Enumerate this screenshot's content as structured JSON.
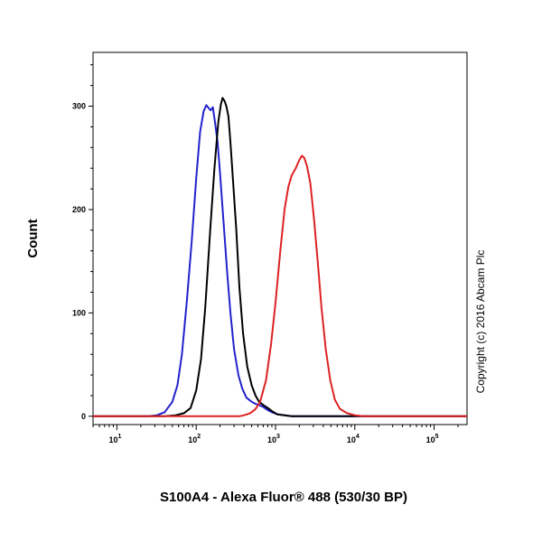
{
  "chart_data": {
    "type": "line",
    "title": "",
    "xlabel": "S100A4 - Alexa Fluor® 488 (530/30 BP)",
    "ylabel": "Count",
    "xscale": "log",
    "xlim": [
      5,
      260000
    ],
    "ylim": [
      -8,
      352
    ],
    "grid": false,
    "legend": "none",
    "x_ticks": [
      {
        "value": 10,
        "base": "10",
        "exp": "1"
      },
      {
        "value": 100,
        "base": "10",
        "exp": "2"
      },
      {
        "value": 1000,
        "base": "10",
        "exp": "3"
      },
      {
        "value": 10000,
        "base": "10",
        "exp": "4"
      },
      {
        "value": 100000,
        "base": "10",
        "exp": "5"
      }
    ],
    "y_ticks": [
      0,
      100,
      200,
      300
    ],
    "copyright": "Copyright (c) 2016 Abcam Plc",
    "series": [
      {
        "color": "#2222cc",
        "points": [
          [
            5,
            0
          ],
          [
            25,
            0
          ],
          [
            32,
            1
          ],
          [
            40,
            4
          ],
          [
            50,
            14
          ],
          [
            58,
            30
          ],
          [
            66,
            60
          ],
          [
            76,
            110
          ],
          [
            88,
            170
          ],
          [
            100,
            230
          ],
          [
            112,
            275
          ],
          [
            124,
            295
          ],
          [
            134,
            301
          ],
          [
            144,
            298
          ],
          [
            152,
            296
          ],
          [
            162,
            299
          ],
          [
            172,
            285
          ],
          [
            186,
            265
          ],
          [
            200,
            235
          ],
          [
            220,
            190
          ],
          [
            245,
            140
          ],
          [
            270,
            100
          ],
          [
            300,
            65
          ],
          [
            340,
            40
          ],
          [
            380,
            27
          ],
          [
            430,
            18
          ],
          [
            500,
            14
          ],
          [
            560,
            12
          ],
          [
            620,
            11
          ],
          [
            700,
            9
          ],
          [
            800,
            6
          ],
          [
            900,
            4
          ],
          [
            1050,
            2
          ],
          [
            1300,
            1
          ],
          [
            1600,
            0
          ],
          [
            5000,
            0
          ],
          [
            260000,
            0
          ]
        ]
      },
      {
        "color": "#000000",
        "points": [
          [
            5,
            0
          ],
          [
            40,
            0
          ],
          [
            55,
            1
          ],
          [
            70,
            3
          ],
          [
            85,
            8
          ],
          [
            100,
            25
          ],
          [
            115,
            55
          ],
          [
            130,
            105
          ],
          [
            150,
            180
          ],
          [
            170,
            240
          ],
          [
            190,
            285
          ],
          [
            205,
            302
          ],
          [
            215,
            308
          ],
          [
            228,
            305
          ],
          [
            240,
            300
          ],
          [
            255,
            290
          ],
          [
            270,
            265
          ],
          [
            290,
            230
          ],
          [
            320,
            180
          ],
          [
            350,
            125
          ],
          [
            390,
            80
          ],
          [
            440,
            48
          ],
          [
            500,
            30
          ],
          [
            560,
            20
          ],
          [
            620,
            14
          ],
          [
            700,
            11
          ],
          [
            800,
            8
          ],
          [
            900,
            5
          ],
          [
            1050,
            2
          ],
          [
            1300,
            1
          ],
          [
            1600,
            0
          ],
          [
            260000,
            0
          ]
        ]
      },
      {
        "color": "#dd2222",
        "points": [
          [
            5,
            0
          ],
          [
            350,
            0
          ],
          [
            400,
            1
          ],
          [
            480,
            3
          ],
          [
            560,
            7
          ],
          [
            640,
            14
          ],
          [
            760,
            35
          ],
          [
            880,
            70
          ],
          [
            1000,
            110
          ],
          [
            1150,
            160
          ],
          [
            1300,
            200
          ],
          [
            1450,
            222
          ],
          [
            1600,
            233
          ],
          [
            1800,
            240
          ],
          [
            2000,
            248
          ],
          [
            2150,
            252
          ],
          [
            2300,
            250
          ],
          [
            2500,
            242
          ],
          [
            2750,
            225
          ],
          [
            3050,
            192
          ],
          [
            3400,
            150
          ],
          [
            3800,
            105
          ],
          [
            4300,
            65
          ],
          [
            4900,
            35
          ],
          [
            5600,
            16
          ],
          [
            6500,
            7
          ],
          [
            8000,
            3
          ],
          [
            10000,
            1
          ],
          [
            13000,
            0
          ],
          [
            260000,
            0
          ]
        ]
      }
    ]
  }
}
